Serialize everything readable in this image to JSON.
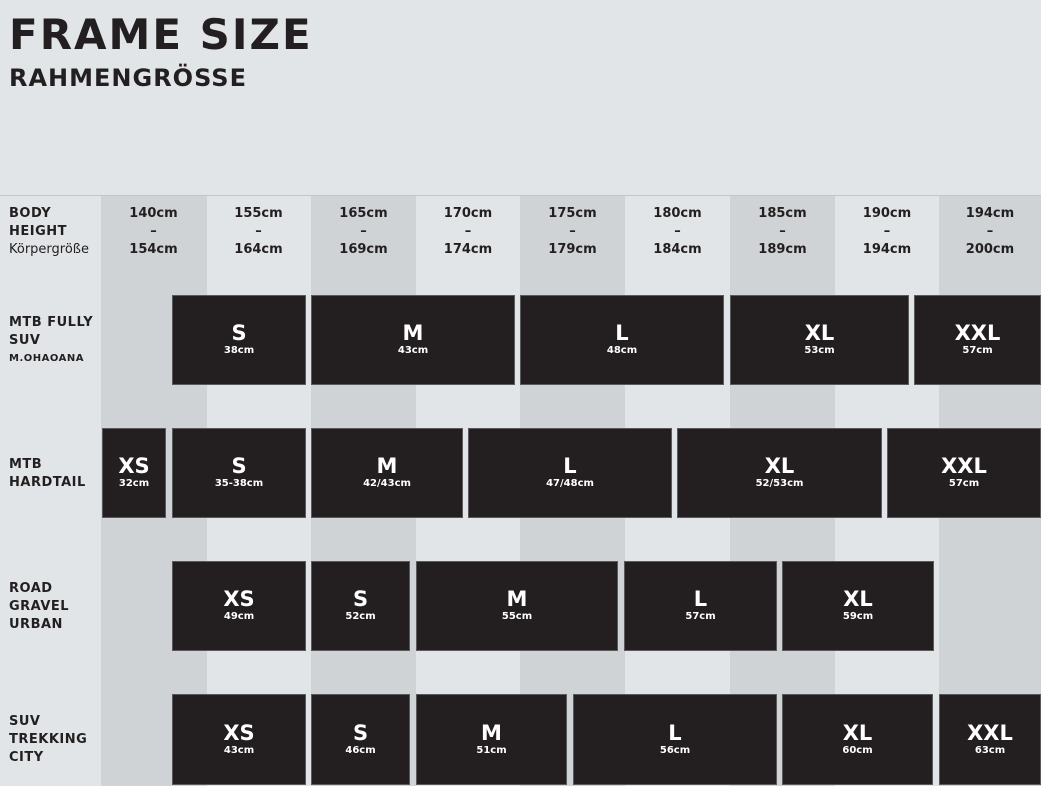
{
  "title": "FRAME SIZE",
  "subtitle": "RAHMENGRÖSSE",
  "header": {
    "label1": "BODY",
    "label2": "HEIGHT",
    "label3": "Körpergröße",
    "ranges": [
      [
        "140cm",
        "–",
        "154cm"
      ],
      [
        "155cm",
        "–",
        "164cm"
      ],
      [
        "165cm",
        "–",
        "169cm"
      ],
      [
        "170cm",
        "–",
        "174cm"
      ],
      [
        "175cm",
        "–",
        "179cm"
      ],
      [
        "180cm",
        "–",
        "184cm"
      ],
      [
        "185cm",
        "–",
        "189cm"
      ],
      [
        "190cm",
        "–",
        "194cm"
      ],
      [
        "194cm",
        "–",
        "200cm"
      ]
    ]
  },
  "rows": [
    {
      "label": [
        "MTB FULLY",
        "SUV"
      ],
      "sub": "M.OHAOANA",
      "sizes": [
        {
          "s": "S",
          "cm": "38cm"
        },
        {
          "s": "M",
          "cm": "43cm"
        },
        {
          "s": "L",
          "cm": "48cm"
        },
        {
          "s": "XL",
          "cm": "53cm"
        },
        {
          "s": "XXL",
          "cm": "57cm"
        }
      ]
    },
    {
      "label": [
        "MTB",
        "HARDTAIL"
      ],
      "sizes": [
        {
          "s": "XS",
          "cm": "32cm"
        },
        {
          "s": "S",
          "cm": "35-38cm"
        },
        {
          "s": "M",
          "cm": "42/43cm"
        },
        {
          "s": "L",
          "cm": "47/48cm"
        },
        {
          "s": "XL",
          "cm": "52/53cm"
        },
        {
          "s": "XXL",
          "cm": "57cm"
        }
      ]
    },
    {
      "label": [
        "ROAD",
        "GRAVEL",
        "URBAN"
      ],
      "sizes": [
        {
          "s": "XS",
          "cm": "49cm"
        },
        {
          "s": "S",
          "cm": "52cm"
        },
        {
          "s": "M",
          "cm": "55cm"
        },
        {
          "s": "L",
          "cm": "57cm"
        },
        {
          "s": "XL",
          "cm": "59cm"
        }
      ]
    },
    {
      "label": [
        "SUV",
        "TREKKING",
        "CITY"
      ],
      "sizes": [
        {
          "s": "XS",
          "cm": "43cm"
        },
        {
          "s": "S",
          "cm": "46cm"
        },
        {
          "s": "M",
          "cm": "51cm"
        },
        {
          "s": "L",
          "cm": "56cm"
        },
        {
          "s": "XL",
          "cm": "60cm"
        },
        {
          "s": "XXL",
          "cm": "63cm"
        }
      ]
    }
  ],
  "colors": {
    "block": "#231f20",
    "dark_column": "#cfd3d6",
    "light_column": "#e2e5e7"
  }
}
